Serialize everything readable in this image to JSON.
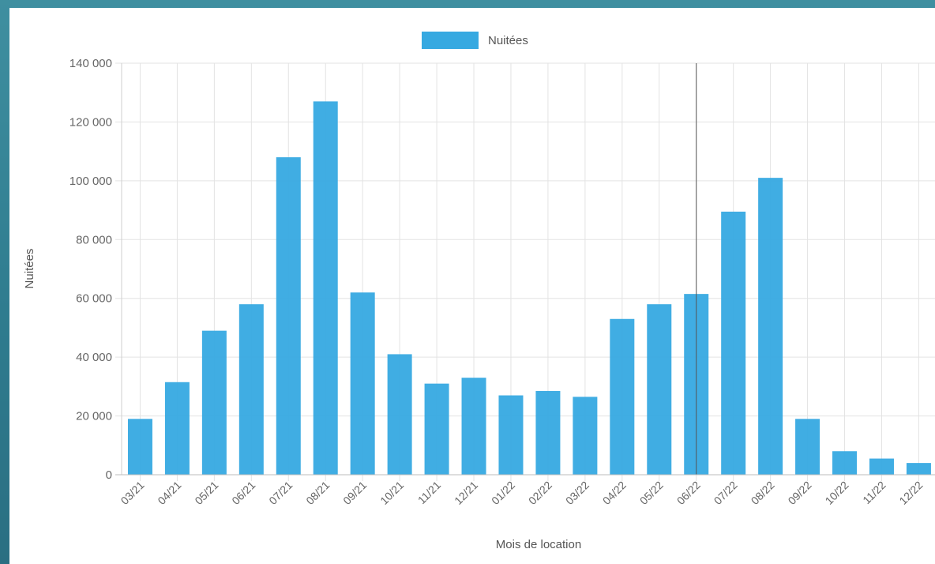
{
  "chart_data": {
    "type": "bar",
    "legend": {
      "label": "Nuitées",
      "position": "top",
      "color": "#36a9e1"
    },
    "xlabel": "Mois de location",
    "ylabel": "Nuitées",
    "ylim": [
      0,
      140000
    ],
    "yticks": [
      "0",
      "20 000",
      "40 000",
      "60 000",
      "80 000",
      "100 000",
      "120 000",
      "140 000"
    ],
    "grid": true,
    "categories": [
      "03/21",
      "04/21",
      "05/21",
      "06/21",
      "07/21",
      "08/21",
      "09/21",
      "10/21",
      "11/21",
      "12/21",
      "01/22",
      "02/22",
      "03/22",
      "04/22",
      "05/22",
      "06/22",
      "07/22",
      "08/22",
      "09/22",
      "10/22",
      "11/22",
      "12/22"
    ],
    "series": [
      {
        "name": "Nuitées",
        "color": "#36a9e1",
        "values": [
          19000,
          31500,
          49000,
          58000,
          108000,
          127000,
          62000,
          41000,
          31000,
          33000,
          27000,
          28500,
          26500,
          53000,
          58000,
          61500,
          89500,
          101000,
          19000,
          8000,
          5500,
          4000
        ]
      }
    ],
    "highlight_category": "06/22"
  }
}
